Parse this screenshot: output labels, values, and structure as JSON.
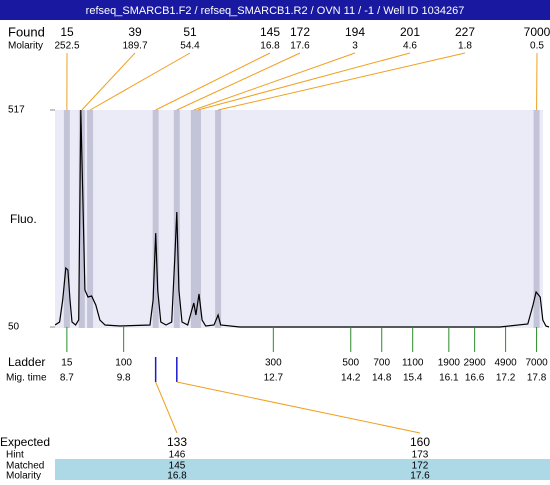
{
  "chart_data": {
    "type": "line",
    "title": "refseq_SMARCB1.F2 / refseq_SMARCB1.R2 / OVN 11 / -1 / Well ID 1034267",
    "found_label": "Found",
    "found_molarity_label": "Molarity",
    "y_label": "Fluo.",
    "ylim": [
      50,
      517
    ],
    "yticks": [
      50,
      517
    ],
    "xlim": [
      8.47,
      18.06
    ],
    "peaks": {
      "sizes": [
        15,
        39,
        51,
        145,
        172,
        194,
        201,
        227,
        7000
      ],
      "molarity": [
        252.5,
        189.7,
        54.4,
        16.8,
        17.6,
        3,
        4.6,
        1.8,
        0.5
      ],
      "x": [
        8.7,
        8.99,
        9.15,
        10.42,
        10.83,
        11.16,
        11.24,
        11.63,
        17.8
      ]
    },
    "ladder_label": "Ladder",
    "mig_time_label": "Mig. time",
    "ladder": {
      "sizes": [
        15,
        100,
        300,
        500,
        700,
        1100,
        1900,
        2900,
        4900,
        7000
      ],
      "mig_times": [
        8.7,
        9.8,
        12.7,
        14.2,
        14.8,
        15.4,
        16.1,
        16.6,
        17.2,
        17.8
      ]
    },
    "trace": {
      "color": "#000000",
      "x": [
        8.47,
        8.56,
        8.62,
        8.68,
        8.72,
        8.76,
        8.8,
        8.87,
        8.93,
        8.97,
        9.01,
        9.05,
        9.11,
        9.18,
        9.26,
        9.34,
        9.44,
        9.73,
        10.31,
        10.37,
        10.42,
        10.46,
        10.52,
        10.62,
        10.73,
        10.79,
        10.83,
        10.87,
        10.93,
        11.04,
        11.12,
        11.16,
        11.2,
        11.26,
        11.32,
        11.39,
        11.55,
        11.63,
        11.68,
        12.05,
        17.09,
        17.63,
        17.73,
        17.79,
        17.87,
        17.92,
        17.98,
        18.04
      ],
      "values": [
        54.3,
        60.8,
        108.1,
        177,
        172.7,
        108,
        60.8,
        54.3,
        65,
        517,
        323,
        129.6,
        114.6,
        116.8,
        97.4,
        65,
        54.3,
        52.2,
        54.3,
        108,
        252,
        129.6,
        60.8,
        54.3,
        60.8,
        194,
        297.5,
        129.6,
        60.8,
        54.3,
        86.6,
        101.6,
        75.8,
        121,
        65,
        52.2,
        54.3,
        75.8,
        54.3,
        50,
        50,
        56.5,
        97.3,
        125.3,
        114.6,
        65,
        52.2,
        50
      ]
    },
    "expected_table": {
      "row_labels": [
        "Expected",
        "Hint",
        "Matched",
        "Molarity"
      ],
      "columns": [
        {
          "expected": 133,
          "hint": 146,
          "matched": 145,
          "molarity": 16.8
        },
        {
          "expected": 160,
          "hint": 173,
          "matched": 172,
          "molarity": 17.6
        }
      ]
    }
  }
}
